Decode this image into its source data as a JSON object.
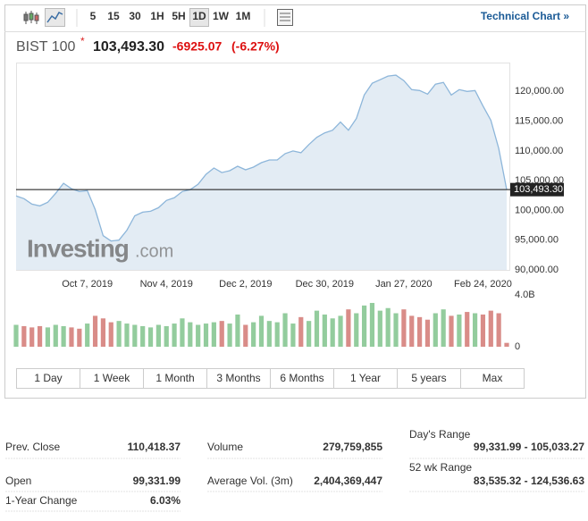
{
  "toolbar": {
    "intervals": [
      "5",
      "15",
      "30",
      "1H",
      "5H",
      "1D",
      "1W",
      "1M"
    ],
    "active_interval": "1D",
    "link": "Technical Chart »"
  },
  "header": {
    "name": "BIST 100",
    "price": "103,493.30",
    "change": "-6925.07",
    "change_pct": "(-6.27%)"
  },
  "watermark": {
    "brand": "Investing",
    "suffix": ".com"
  },
  "chart_data": [
    {
      "type": "area",
      "color": "#8db6da",
      "fill": "#e3ecf4",
      "categories": [
        null,
        null,
        null,
        null,
        null,
        null,
        null,
        null,
        null,
        "Oct 7, 2019",
        null,
        null,
        null,
        null,
        null,
        null,
        null,
        null,
        null,
        "Nov 4, 2019",
        null,
        null,
        null,
        null,
        null,
        null,
        null,
        null,
        null,
        "Dec 2, 2019",
        null,
        null,
        null,
        null,
        null,
        null,
        null,
        null,
        null,
        "Dec 30, 2019",
        null,
        null,
        null,
        null,
        null,
        null,
        null,
        null,
        null,
        "Jan 27, 2020",
        null,
        null,
        null,
        null,
        null,
        null,
        null,
        null,
        null,
        "Feb 24, 2020",
        null,
        null,
        null
      ],
      "values": [
        102424,
        101970,
        101060,
        100760,
        101360,
        102880,
        104550,
        103640,
        103180,
        103330,
        100150,
        95760,
        94850,
        95000,
        96670,
        99090,
        99700,
        99850,
        100450,
        101670,
        102120,
        103180,
        103480,
        104390,
        106060,
        107120,
        106360,
        106670,
        107420,
        106820,
        107270,
        108030,
        108480,
        108480,
        109550,
        110000,
        109700,
        111060,
        112270,
        113030,
        113480,
        114850,
        113480,
        115450,
        119390,
        121360,
        121970,
        122580,
        122730,
        121820,
        120300,
        120150,
        119550,
        121210,
        121520,
        119390,
        120300,
        120000,
        120150,
        117580,
        115150,
        110418.37,
        103493.3
      ],
      "ylim": [
        90000,
        124850
      ],
      "yticks": [
        {
          "value": 90000,
          "label": "90,000.00"
        },
        {
          "value": 95000,
          "label": "95,000.00"
        },
        {
          "value": 100000,
          "label": "100,000.00"
        },
        {
          "value": 105000,
          "label": "105,000.00"
        },
        {
          "value": 110000,
          "label": "110,000.00"
        },
        {
          "value": 115000,
          "label": "115,000.00"
        },
        {
          "value": 120000,
          "label": "120,000.00"
        }
      ],
      "current": {
        "value": 103493.3,
        "label": "103,493.30"
      }
    },
    {
      "type": "bar",
      "up_color": "#93cc9d",
      "down_color": "#d98c88",
      "values": [
        1.7,
        1.6,
        1.5,
        1.6,
        1.5,
        1.7,
        1.6,
        1.5,
        1.4,
        1.8,
        2.4,
        2.2,
        1.9,
        2.0,
        1.8,
        1.7,
        1.6,
        1.5,
        1.7,
        1.6,
        1.8,
        2.2,
        1.9,
        1.7,
        1.8,
        1.9,
        2.0,
        1.8,
        2.5,
        1.7,
        1.9,
        2.4,
        2.0,
        1.9,
        2.6,
        1.8,
        2.3,
        2.0,
        2.8,
        2.5,
        2.2,
        2.4,
        2.9,
        2.6,
        3.2,
        3.4,
        2.8,
        3.0,
        2.6,
        2.9,
        2.4,
        2.3,
        2.1,
        2.6,
        2.9,
        2.4,
        2.5,
        2.7,
        2.6,
        2.5,
        2.8,
        2.6,
        0.3
      ],
      "ylim": [
        0,
        4.3
      ],
      "yticks": [
        0,
        {
          "value": 4,
          "label": "4.0B"
        }
      ]
    }
  ],
  "ranges": [
    "1 Day",
    "1 Week",
    "1 Month",
    "3 Months",
    "6 Months",
    "1 Year",
    "5 years",
    "Max"
  ],
  "stats": {
    "left": [
      [
        "Prev. Close",
        "110,418.37"
      ],
      [
        "Open",
        "99,331.99"
      ],
      [
        "1-Year Change",
        "6.03%"
      ]
    ],
    "middle": [
      [
        "Volume",
        "279,759,855"
      ],
      [
        "Average Vol. (3m)",
        "2,404,369,447"
      ]
    ],
    "right": [
      [
        "Day's Range",
        "99,331.99 - 105,033.27"
      ],
      [
        "52 wk Range",
        "83,535.32 - 124,536.63"
      ]
    ]
  }
}
